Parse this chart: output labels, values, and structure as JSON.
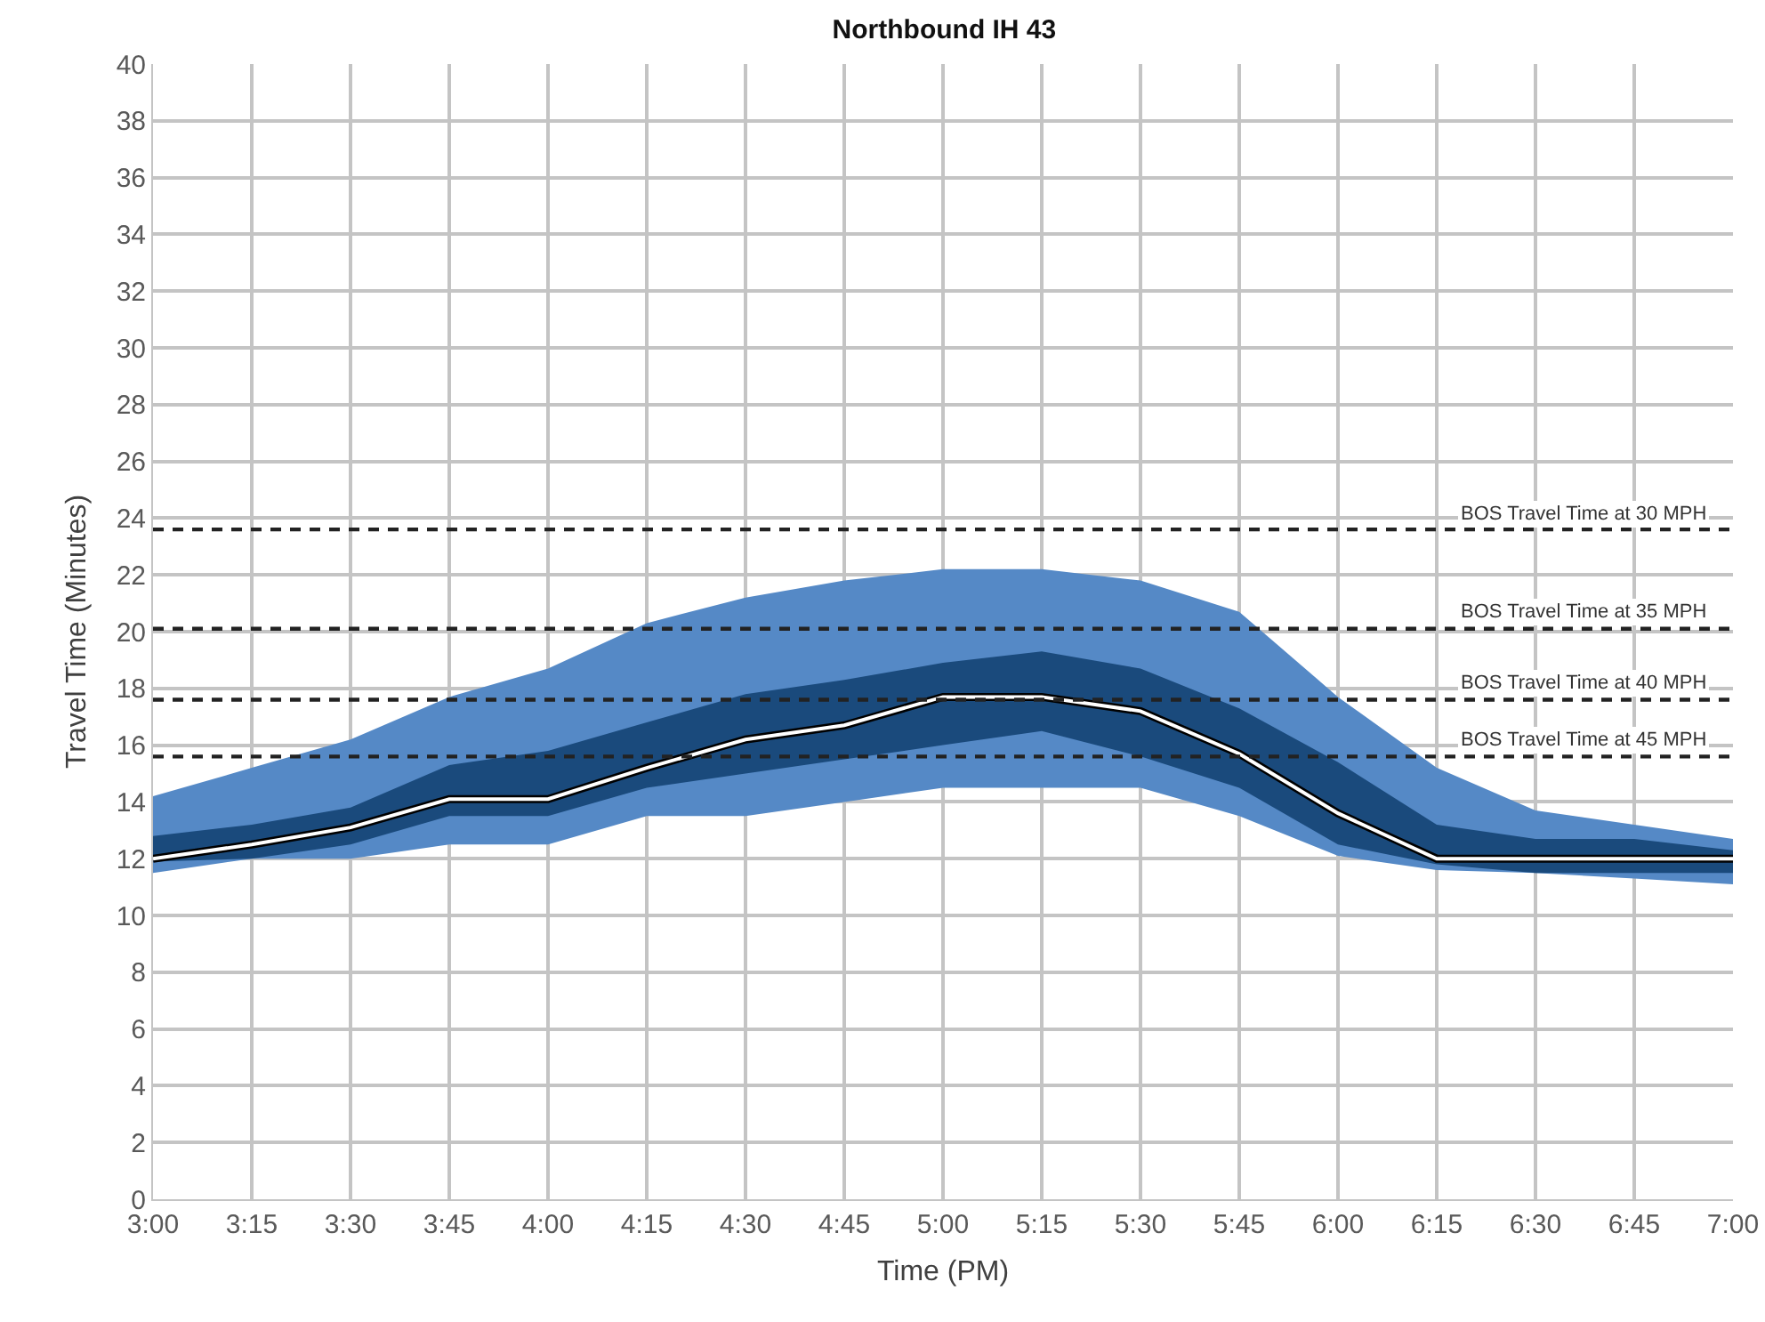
{
  "chart_data": {
    "type": "area",
    "title": "Northbound IH 43",
    "xlabel": "Time (PM)",
    "ylabel": "Travel Time (Minutes)",
    "categories": [
      "3:00",
      "3:15",
      "3:30",
      "3:45",
      "4:00",
      "4:15",
      "4:30",
      "4:45",
      "5:00",
      "5:15",
      "5:30",
      "5:45",
      "6:00",
      "6:15",
      "6:30",
      "6:45",
      "7:00"
    ],
    "series": [
      {
        "color": "#5589c6",
        "values": [
          null,
          null,
          null,
          null,
          null,
          null,
          null,
          null,
          null,
          null,
          null,
          null,
          null,
          null,
          null,
          null,
          null
        ],
        "upper": [
          14.2,
          15.2,
          16.2,
          17.7,
          18.7,
          20.3,
          21.2,
          21.8,
          22.2,
          22.2,
          21.8,
          20.7,
          17.7,
          15.2,
          13.7,
          13.2,
          12.7
        ],
        "lower": [
          11.5,
          12.0,
          12.0,
          12.5,
          12.5,
          13.5,
          13.5,
          14.0,
          14.5,
          14.5,
          14.5,
          13.5,
          12.1,
          11.6,
          11.5,
          11.3,
          11.1
        ]
      },
      {
        "color": "#1a4a7c",
        "values": [
          null,
          null,
          null,
          null,
          null,
          null,
          null,
          null,
          null,
          null,
          null,
          null,
          null,
          null,
          null,
          null,
          null
        ],
        "upper": [
          12.8,
          13.2,
          13.8,
          15.3,
          15.8,
          16.8,
          17.8,
          18.3,
          18.9,
          19.3,
          18.7,
          17.3,
          15.4,
          13.2,
          12.7,
          12.7,
          12.3
        ],
        "lower": [
          11.9,
          12.0,
          12.5,
          13.5,
          13.5,
          14.5,
          15.0,
          15.5,
          16.0,
          16.5,
          15.6,
          14.5,
          12.5,
          11.8,
          11.5,
          11.5,
          11.5
        ]
      },
      {
        "type": "line",
        "color": "#ffffff",
        "values": [
          12.0,
          12.5,
          13.1,
          14.1,
          14.1,
          15.2,
          16.2,
          16.7,
          17.7,
          17.7,
          17.2,
          15.7,
          13.6,
          12.0,
          12.0,
          12.0,
          12.0
        ]
      }
    ],
    "ylim": [
      0,
      40
    ],
    "yticks": [
      0,
      2,
      4,
      6,
      8,
      10,
      12,
      14,
      16,
      18,
      20,
      22,
      24,
      26,
      28,
      30,
      32,
      34,
      36,
      38,
      40
    ],
    "ref_lines": [
      {
        "axis": "y",
        "value": 23.6,
        "label": "BOS Travel Time at 30 MPH",
        "color": "#222222",
        "line_style": "dashed"
      },
      {
        "axis": "y",
        "value": 20.1,
        "label": "BOS Travel Time at 35 MPH",
        "color": "#222222",
        "line_style": "dashed"
      },
      {
        "axis": "y",
        "value": 17.6,
        "label": "BOS Travel Time at 40 MPH",
        "color": "#222222",
        "line_style": "dashed"
      },
      {
        "axis": "y",
        "value": 15.6,
        "label": "BOS Travel Time at 45 MPH",
        "color": "#222222",
        "line_style": "dashed"
      }
    ],
    "grid": true
  }
}
